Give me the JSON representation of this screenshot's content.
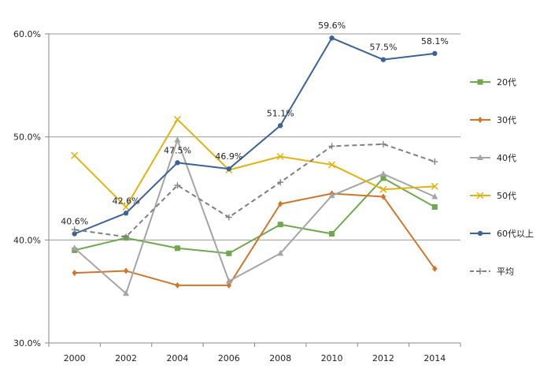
{
  "chart_data": {
    "type": "line",
    "title": "",
    "xlabel": "",
    "ylabel": "",
    "categories": [
      "2000",
      "2002",
      "2004",
      "2006",
      "2008",
      "2010",
      "2012",
      "2014"
    ],
    "ylim": [
      30,
      60
    ],
    "yticks": [
      30,
      40,
      50,
      60
    ],
    "ytick_labels": [
      "30.0%",
      "40.0%",
      "50.0%",
      "60.0%"
    ],
    "grid": "horizontal",
    "legend_position": "right",
    "series": [
      {
        "name": "20代",
        "color": "#70a850",
        "marker": "square",
        "dash": false,
        "values": [
          39.0,
          40.2,
          39.2,
          38.7,
          41.5,
          40.6,
          46.0,
          43.2
        ]
      },
      {
        "name": "30代",
        "color": "#d0752c",
        "marker": "diamond",
        "dash": false,
        "values": [
          36.8,
          37.0,
          35.6,
          35.6,
          43.5,
          44.5,
          44.2,
          37.2
        ]
      },
      {
        "name": "40代",
        "color": "#a5a5a5",
        "marker": "triangle",
        "dash": false,
        "values": [
          39.2,
          34.8,
          49.7,
          36.0,
          38.7,
          44.3,
          46.4,
          44.2
        ]
      },
      {
        "name": "50代",
        "color": "#e0b214",
        "marker": "x",
        "dash": false,
        "values": [
          48.2,
          43.2,
          51.7,
          46.8,
          48.1,
          47.3,
          44.9,
          45.2
        ]
      },
      {
        "name": "60代以上",
        "color": "#3d6296",
        "marker": "circle",
        "dash": false,
        "values": [
          40.6,
          42.6,
          47.5,
          46.9,
          51.1,
          59.6,
          57.5,
          58.1
        ],
        "data_labels": [
          "40.6%",
          "42.6%",
          "47.5%",
          "46.9%",
          "51.1%",
          "59.6%",
          "57.5%",
          "58.1%"
        ]
      },
      {
        "name": "平均",
        "color": "#7f7f7f",
        "marker": "plus",
        "dash": true,
        "values": [
          41.0,
          40.3,
          45.3,
          42.2,
          45.6,
          49.1,
          49.3,
          47.6
        ]
      }
    ]
  }
}
